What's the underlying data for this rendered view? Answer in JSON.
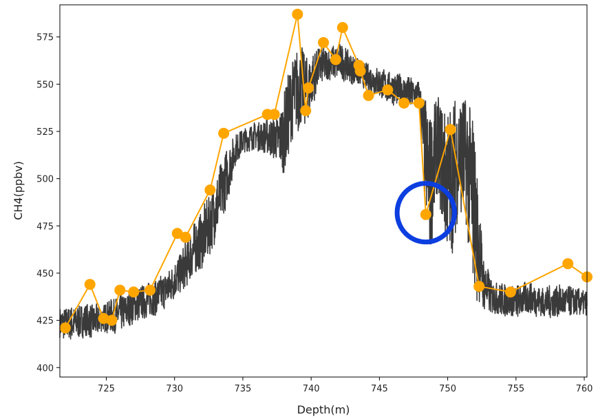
{
  "chart_data": {
    "type": "line",
    "xlabel": "Depth(m)",
    "ylabel": "CH4(ppbv)",
    "xlim": [
      721.6,
      760.2
    ],
    "ylim": [
      395,
      592
    ],
    "xticks": [
      725,
      730,
      735,
      740,
      745,
      750,
      755,
      760
    ],
    "yticks": [
      400,
      425,
      450,
      475,
      500,
      525,
      550,
      575
    ],
    "grid": false,
    "legend": "none",
    "colors": {
      "background": "#ffffff",
      "trace": "#3a3a3a",
      "markers": "#ffa500",
      "highlight": "#0c3ee0"
    },
    "series": [
      {
        "kind": "dense-trace",
        "style": "dark-gray noisy line",
        "envelope": [
          [
            721.6,
            415,
            432
          ],
          [
            722.5,
            414,
            433
          ],
          [
            723.5,
            416,
            434
          ],
          [
            724.2,
            415,
            434
          ],
          [
            724.6,
            419,
            433
          ],
          [
            725.2,
            418,
            436
          ],
          [
            725.8,
            418,
            438
          ],
          [
            726.5,
            421,
            440
          ],
          [
            727.5,
            425,
            444
          ],
          [
            728.5,
            427,
            446
          ],
          [
            729.5,
            432,
            452
          ],
          [
            730.5,
            440,
            462
          ],
          [
            731.3,
            446,
            476
          ],
          [
            732.3,
            455,
            488
          ],
          [
            733.2,
            470,
            505
          ],
          [
            733.8,
            485,
            517
          ],
          [
            734.5,
            508,
            524
          ],
          [
            735.0,
            513,
            527
          ],
          [
            735.8,
            515,
            530
          ],
          [
            736.8,
            513,
            532
          ],
          [
            737.6,
            508,
            534
          ],
          [
            738.0,
            500,
            545
          ],
          [
            738.6,
            520,
            565
          ],
          [
            739.2,
            525,
            572
          ],
          [
            739.8,
            530,
            565
          ],
          [
            740.5,
            548,
            570
          ],
          [
            741.3,
            552,
            570
          ],
          [
            742.2,
            552,
            572
          ],
          [
            743.0,
            550,
            566
          ],
          [
            743.8,
            548,
            562
          ],
          [
            744.6,
            544,
            560
          ],
          [
            745.5,
            540,
            558
          ],
          [
            746.3,
            538,
            556
          ],
          [
            747.2,
            536,
            554
          ],
          [
            747.9,
            536,
            552
          ],
          [
            748.3,
            490,
            545
          ],
          [
            748.7,
            455,
            538
          ],
          [
            749.2,
            490,
            545
          ],
          [
            749.8,
            465,
            540
          ],
          [
            750.2,
            455,
            540
          ],
          [
            750.6,
            470,
            545
          ],
          [
            751.0,
            480,
            548
          ],
          [
            751.4,
            470,
            546
          ],
          [
            751.8,
            445,
            540
          ],
          [
            752.2,
            432,
            505
          ],
          [
            752.6,
            430,
            460
          ],
          [
            753.2,
            428,
            447
          ],
          [
            754.0,
            427,
            445
          ],
          [
            755.0,
            426,
            444
          ],
          [
            756.0,
            428,
            446
          ],
          [
            757.0,
            426,
            443
          ],
          [
            758.0,
            426,
            444
          ],
          [
            759.0,
            427,
            443
          ],
          [
            760.2,
            427,
            441
          ]
        ]
      },
      {
        "kind": "markers",
        "style": "orange line with circle markers",
        "points": [
          [
            722.0,
            421
          ],
          [
            723.8,
            444
          ],
          [
            724.8,
            426
          ],
          [
            725.4,
            425
          ],
          [
            726.0,
            441
          ],
          [
            727.0,
            440
          ],
          [
            728.2,
            441
          ],
          [
            730.2,
            471
          ],
          [
            730.8,
            469
          ],
          [
            732.6,
            494
          ],
          [
            733.6,
            524
          ],
          [
            736.8,
            534
          ],
          [
            737.3,
            534
          ],
          [
            739.0,
            587
          ],
          [
            739.6,
            536
          ],
          [
            739.8,
            548
          ],
          [
            740.9,
            572
          ],
          [
            741.8,
            563
          ],
          [
            742.3,
            580
          ],
          [
            743.5,
            560
          ],
          [
            743.6,
            557
          ],
          [
            744.2,
            544
          ],
          [
            745.6,
            547
          ],
          [
            746.8,
            540
          ],
          [
            747.9,
            540
          ],
          [
            748.4,
            481
          ],
          [
            750.2,
            526
          ],
          [
            752.3,
            443
          ],
          [
            754.6,
            440
          ],
          [
            758.8,
            455
          ],
          [
            760.2,
            448
          ]
        ]
      }
    ],
    "annotations": [
      {
        "type": "circle",
        "color": "#0c3ee0",
        "center": [
          748.4,
          482
        ],
        "radius_x_data": 2.1,
        "radius_y_data": 15.5
      }
    ]
  }
}
